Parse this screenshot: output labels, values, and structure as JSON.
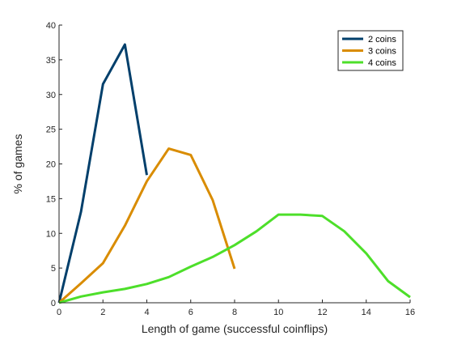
{
  "chart_data": {
    "type": "line",
    "title": "",
    "xlabel": "Length of game (successful coinflips)",
    "ylabel": "% of games",
    "xlim": [
      0,
      16
    ],
    "ylim": [
      0,
      40
    ],
    "xticks": [
      0,
      2,
      4,
      6,
      8,
      10,
      12,
      14,
      16
    ],
    "yticks": [
      0,
      5,
      10,
      15,
      20,
      25,
      30,
      35,
      40
    ],
    "grid": false,
    "legend_position": "top-right",
    "series": [
      {
        "name": "2 coins",
        "color": "#003f6b",
        "x": [
          0,
          1,
          2,
          3,
          4
        ],
        "y": [
          0,
          13.1,
          31.5,
          37.2,
          18.4
        ]
      },
      {
        "name": "3 coins",
        "color": "#d98c00",
        "x": [
          0,
          1,
          2,
          3,
          4,
          5,
          6,
          7,
          8
        ],
        "y": [
          0,
          2.8,
          5.7,
          11.1,
          17.5,
          22.2,
          21.3,
          14.8,
          4.9
        ]
      },
      {
        "name": "4 coins",
        "color": "#4ddf2a",
        "x": [
          0,
          1,
          2,
          3,
          4,
          5,
          6,
          7,
          8,
          9,
          10,
          11,
          12,
          13,
          14,
          15,
          16
        ],
        "y": [
          0,
          0.9,
          1.5,
          2.0,
          2.7,
          3.7,
          5.2,
          6.6,
          8.3,
          10.3,
          12.7,
          12.7,
          12.5,
          10.3,
          7.1,
          3.1,
          0.8
        ]
      }
    ]
  }
}
